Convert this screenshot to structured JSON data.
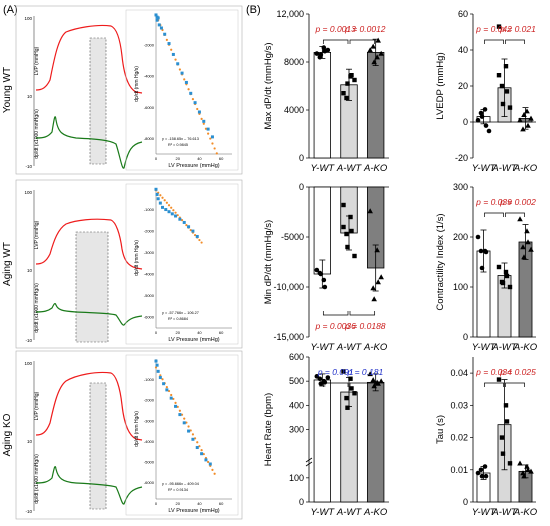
{
  "panel_labels": {
    "a": "(A)",
    "b": "(B)"
  },
  "row_labels": [
    "Young WT",
    "Aging WT",
    "Aging KO"
  ],
  "trace_labels": {
    "lvp": "LVP (mmHg)",
    "dpdt": "dp/dt (x1000 mmHg/s)",
    "ytick_top": "100",
    "ytick_mid": "10",
    "ytick_bot": "-10"
  },
  "scatter_labels": {
    "xlabel": "LV Pressure (mmHg)",
    "ylabel": "dp/dt (mm Hg/s)"
  },
  "colors": {
    "lvp": "#ee1c1c",
    "dpdt": "#1a7a1a",
    "scatter_pts": "#2b8fd0",
    "scatter_fit": "#f28c28",
    "bar_ywt": "#ffffff",
    "bar_awt": "#d9d9d9",
    "bar_ako": "#7f7f7f",
    "p_red": "#cc1f1f",
    "p_blue": "#2030c8"
  },
  "chart_data": [
    {
      "type": "scatter",
      "row": 0,
      "x_ticks": [
        "0",
        "20",
        "40",
        "60"
      ],
      "y_ticks": [
        "-2000",
        "-4000",
        "-6000",
        "-8000"
      ],
      "xlim": [
        0,
        70
      ],
      "ylim": [
        -9000,
        0
      ],
      "fit": {
        "slope": -158.65,
        "intercept": -76.613
      },
      "eq": "y = -158.65x – 76.613",
      "r2": "R² = 0.9845",
      "points": [
        [
          0,
          -60
        ],
        [
          1,
          -200
        ],
        [
          1,
          -400
        ],
        [
          2,
          -250
        ],
        [
          3,
          -700
        ],
        [
          5,
          -900
        ],
        [
          8,
          -1300
        ],
        [
          12,
          -1900
        ],
        [
          16,
          -2600
        ],
        [
          20,
          -3200
        ],
        [
          24,
          -3800
        ],
        [
          28,
          -4400
        ],
        [
          32,
          -5100
        ],
        [
          36,
          -5700
        ],
        [
          40,
          -6300
        ],
        [
          44,
          -6900
        ],
        [
          48,
          -7400
        ],
        [
          52,
          -7900
        ]
      ]
    },
    {
      "type": "scatter",
      "row": 1,
      "x_ticks": [
        "0",
        "20",
        "40",
        "60"
      ],
      "y_ticks": [
        "-1000",
        "-2000",
        "-3000",
        "-4000",
        "-5000",
        "-6000"
      ],
      "xlim": [
        0,
        70
      ],
      "ylim": [
        -6500,
        0
      ],
      "fit": {
        "slope": -57.766,
        "intercept": -106.27
      },
      "eq": "y = -57.766x – 106.27",
      "r2": "R² = 0.8684",
      "points": [
        [
          0,
          -60
        ],
        [
          1,
          -300
        ],
        [
          2,
          -500
        ],
        [
          4,
          -700
        ],
        [
          6,
          -900
        ],
        [
          9,
          -1000
        ],
        [
          12,
          -1100
        ],
        [
          15,
          -1200
        ],
        [
          18,
          -1300
        ],
        [
          22,
          -1450
        ],
        [
          26,
          -1600
        ],
        [
          30,
          -1800
        ],
        [
          34,
          -2000
        ],
        [
          38,
          -2250
        ]
      ]
    },
    {
      "type": "scatter",
      "row": 2,
      "x_ticks": [
        "0",
        "20",
        "40",
        "60"
      ],
      "y_ticks": [
        "-1000",
        "-2000",
        "-3000",
        "-4000",
        "-5000",
        "-6000"
      ],
      "xlim": [
        0,
        70
      ],
      "ylim": [
        -6800,
        0
      ],
      "fit": {
        "slope": -95.666,
        "intercept": -409.04
      },
      "eq": "y = -95.666x – 409.04",
      "r2": "R² = 0.9134",
      "points": [
        [
          0,
          -100
        ],
        [
          1,
          -300
        ],
        [
          2,
          -600
        ],
        [
          4,
          -900
        ],
        [
          7,
          -1200
        ],
        [
          10,
          -1500
        ],
        [
          14,
          -1900
        ],
        [
          18,
          -2300
        ],
        [
          22,
          -2700
        ],
        [
          26,
          -3100
        ],
        [
          30,
          -3500
        ],
        [
          34,
          -3900
        ],
        [
          38,
          -4300
        ],
        [
          42,
          -4600
        ],
        [
          46,
          -4900
        ],
        [
          50,
          -5100
        ]
      ]
    },
    {
      "type": "bar",
      "id": "max-dpdt",
      "ylabel": "Max dP/dt (mmHg/s)",
      "yticks": [
        "12,000",
        "8000",
        "4000",
        "0"
      ],
      "ylim": [
        0,
        12000
      ],
      "categories": [
        "Y-WT",
        "A-WT",
        "A-KO"
      ],
      "values": [
        8800,
        6100,
        8800
      ],
      "errors": [
        500,
        1300,
        1100
      ],
      "points": [
        [
          8700,
          9200,
          8900,
          8400,
          8600,
          9000
        ],
        [
          5400,
          6800,
          6900,
          5000,
          6200,
          6500
        ],
        [
          9000,
          8400,
          9800,
          9300,
          8000,
          8700
        ]
      ],
      "pvals": [
        "p = 0.0013",
        "p = 0.0012"
      ],
      "pcolor": "red",
      "pos": "top"
    },
    {
      "type": "bar",
      "id": "lvedp",
      "ylabel": "LVEDP (mmHg)",
      "yticks": [
        "60",
        "40",
        "20",
        "0",
        "-20"
      ],
      "ylim": [
        -20,
        60
      ],
      "categories": [
        "Y-WT",
        "A-WT",
        "A-KO"
      ],
      "values": [
        3,
        19,
        2
      ],
      "errors": [
        4,
        16,
        6
      ],
      "points": [
        [
          1,
          7,
          -2,
          5,
          3,
          -5
        ],
        [
          26,
          31,
          17,
          20,
          10,
          8,
          53
        ],
        [
          1,
          6,
          -2,
          -4,
          4,
          2
        ]
      ],
      "pvals": [
        "p = 0.042",
        "p = 0.021"
      ],
      "pcolor": "red",
      "pos": "top"
    },
    {
      "type": "bar",
      "id": "min-dpdt",
      "ylabel": "Min dP/dt (mmHg/s)",
      "yticks": [
        "0",
        "-5000",
        "-10,000",
        "-15,000"
      ],
      "ylim": [
        -15000,
        0
      ],
      "categories": [
        "Y-WT",
        "A-WT",
        "A-KO"
      ],
      "values": [
        -8700,
        -4600,
        -8100
      ],
      "errors": [
        1400,
        1700,
        2300
      ],
      "points": [
        [
          -8300,
          -9300,
          -10000,
          -8600,
          -8700
        ],
        [
          -1800,
          -3000,
          -4400,
          -4700,
          -6000,
          -6900,
          -4000
        ],
        [
          -2400,
          -6300,
          -9500,
          -10100,
          -11200,
          -9000
        ]
      ],
      "pvals": [
        "p = 0.0036",
        "p = 0.0188"
      ],
      "pcolor": "red",
      "pos": "bottom"
    },
    {
      "type": "bar",
      "id": "contractility",
      "ylabel": "Contractility Index (1/s)",
      "yticks": [
        "300",
        "200",
        "100",
        "0"
      ],
      "ylim": [
        0,
        300
      ],
      "categories": [
        "Y-WT",
        "A-WT",
        "A-KO"
      ],
      "values": [
        172,
        123,
        190
      ],
      "errors": [
        42,
        25,
        35
      ],
      "points": [
        [
          200,
          172,
          170,
          172,
          138
        ],
        [
          140,
          130,
          122,
          110,
          108,
          100
        ],
        [
          236,
          212,
          190,
          180,
          160,
          175
        ]
      ],
      "pvals": [
        "p = 0.039",
        "p = 0.002"
      ],
      "pcolor": "red",
      "pos": "top"
    },
    {
      "type": "bar",
      "id": "heart-rate",
      "ylabel": "Heart Rate (bpm)",
      "yticks": [
        "600",
        "500",
        "400",
        "300",
        "100",
        "0"
      ],
      "ylim": [
        0,
        600
      ],
      "categories": [
        "Y-WT",
        "A-WT",
        "A-KO"
      ],
      "values": [
        505,
        455,
        495
      ],
      "errors": [
        25,
        60,
        35
      ],
      "points": [
        [
          520,
          500,
          495,
          510,
          490,
          515
        ],
        [
          540,
          510,
          470,
          430,
          390,
          450
        ],
        [
          530,
          495,
          490,
          505,
          480,
          500
        ]
      ],
      "pvals": [
        "p = 0.091",
        "p = 0.181"
      ],
      "pcolor": "blue",
      "pos": "top"
    },
    {
      "type": "bar",
      "id": "tau",
      "ylabel": "Tau (s)",
      "yticks": [
        "0.04",
        "0.03",
        "0.02",
        "0.01",
        "0"
      ],
      "ylim": [
        0,
        0.045
      ],
      "categories": [
        "Y-WT",
        "A-WT",
        "A-KO"
      ],
      "values": [
        0.009,
        0.024,
        0.0095
      ],
      "errors": [
        0.002,
        0.014,
        0.002
      ],
      "points": [
        [
          0.009,
          0.011,
          0.008,
          0.01,
          0.008
        ],
        [
          0.038,
          0.03,
          0.025,
          0.02,
          0.015,
          0.012
        ],
        [
          0.012,
          0.011,
          0.01,
          0.009,
          0.008,
          0.0095
        ]
      ],
      "pvals": [
        "p = 0.034",
        "p = 0.025"
      ],
      "pcolor": "red",
      "pos": "top"
    }
  ]
}
